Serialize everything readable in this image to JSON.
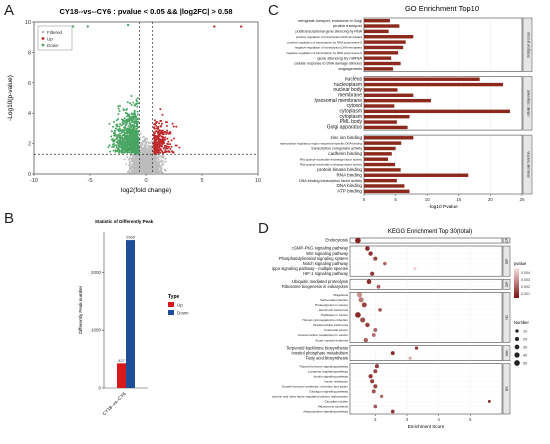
{
  "panels": {
    "A": {
      "letter": "A",
      "chart_data": {
        "type": "scatter",
        "title": "CY18--vs--CY6 : pvalue < 0.05 && |log2FC| > 0.58",
        "xlabel": "log2(fold change)",
        "ylabel": "-Log10(p-value)",
        "xlim": [
          -10,
          10
        ],
        "ylim": [
          0,
          10
        ],
        "x_ticks": [
          "-10",
          "-5",
          "0",
          "5",
          "10"
        ],
        "y_ticks": [
          "0",
          "2",
          "4",
          "6",
          "8",
          "10"
        ],
        "legend_position": "top-left",
        "legend": [
          "Filtered",
          "Up",
          "Down"
        ],
        "colors": {
          "filtered": "#bdbdbd",
          "up": "#c0282a",
          "down": "#4aa563"
        },
        "threshold_lines": {
          "x": [
            -0.58,
            0.58
          ],
          "y": 1.3
        },
        "groups": [
          {
            "name": "Filtered",
            "region": "|x|<0.58 or y<1.3",
            "count_est": 14000
          },
          {
            "name": "Up",
            "region": "x>0.58, y>1.3",
            "count_est": 427
          },
          {
            "name": "Down",
            "region": "x<-0.58, y>1.3",
            "count_est": 2560
          }
        ]
      }
    },
    "B": {
      "letter": "B",
      "chart_data": {
        "type": "bar",
        "title": "Statistic of Differently Peak",
        "ylabel": "Differently Peak number",
        "categories": [
          "CY18--vs--CY6"
        ],
        "series": [
          {
            "name": "Up",
            "values": [
              427
            ],
            "color": "#d7191c"
          },
          {
            "name": "Down",
            "values": [
              2560
            ],
            "color": "#1f4e99"
          }
        ],
        "data_labels": [
          "427",
          "2560"
        ],
        "y_ticks": [
          "0",
          "1000",
          "2000"
        ],
        "ylim": [
          0,
          2700
        ],
        "legend_title": "Type",
        "legend_position": "right"
      }
    },
    "C": {
      "letter": "C",
      "chart_data": {
        "type": "bar",
        "title": "GO Enrichment Top10",
        "xlabel": "-log10 Pvalue",
        "x_ticks": [
          "0",
          "5",
          "10",
          "15",
          "20",
          "25"
        ],
        "xlim": [
          0,
          25
        ],
        "bar_color": "#8b2a1c",
        "groups": [
          {
            "name": "biological process",
            "terms": [
              {
                "label": "retrograde transport, endosome to Golgi",
                "value": 4.1
              },
              {
                "label": "protein transport",
                "value": 5.6
              },
              {
                "label": "posttranscriptional gene silencing by RNA",
                "value": 3.9
              },
              {
                "label": "positive regulation of transcription,DNA-templated",
                "value": 7.8
              },
              {
                "label": "positive regulation of transcription by RNA polymerase II",
                "value": 6.6
              },
              {
                "label": "negative regulation of transcription,DNA-templated",
                "value": 6.2
              },
              {
                "label": "negative regulation of transcription by RNA polymerase II",
                "value": 5.4
              },
              {
                "label": "gene silencing by miRNA",
                "value": 4.3
              },
              {
                "label": "cellular response to DNA damage stimulus",
                "value": 5.8
              },
              {
                "label": "angiogenesis",
                "value": 4.6
              }
            ]
          },
          {
            "name": "cellular component",
            "terms": [
              {
                "label": "nucleus",
                "value": 18.3
              },
              {
                "label": "nucleoplasm",
                "value": 22.0
              },
              {
                "label": "nuclear body",
                "value": 5.3
              },
              {
                "label": "membrane",
                "value": 7.8
              },
              {
                "label": "lysosomal membrane",
                "value": 10.6
              },
              {
                "label": "cytosol",
                "value": 4.8
              },
              {
                "label": "cytoplasm",
                "value": 23.1
              },
              {
                "label": "cytoplasm",
                "value": 7.2
              },
              {
                "label": "PML body",
                "value": 5.2
              },
              {
                "label": "Golgi apparatus",
                "value": 6.9
              }
            ]
          },
          {
            "name": "molecular function",
            "terms": [
              {
                "label": "zinc ion binding",
                "value": 7.8
              },
              {
                "label": "transcription regulatory region sequence-specific DNA binding",
                "value": 5.9
              },
              {
                "label": "transcription coregulator activity",
                "value": 5.0
              },
              {
                "label": "cadherin binding",
                "value": 4.4
              },
              {
                "label": "Rho guanyl-nucleotide exchange factor activity",
                "value": 3.8
              },
              {
                "label": "Rab guanyl-nucleotide exchange factor activity",
                "value": 4.9
              },
              {
                "label": "protein kinase binding",
                "value": 5.8
              },
              {
                "label": "RNA binding",
                "value": 16.5
              },
              {
                "label": "DNA-binding transcription factor activity",
                "value": 5.2
              },
              {
                "label": "DNA binding",
                "value": 6.4
              },
              {
                "label": "ATP binding",
                "value": 7.2
              }
            ]
          }
        ]
      }
    },
    "D": {
      "letter": "D",
      "chart_data": {
        "type": "scatter",
        "title": "KEGG Enrichment Top 30(total)",
        "xlabel": "Enrichment Score",
        "x_ticks": [
          "2",
          "3",
          "4",
          "5"
        ],
        "xlim": [
          1.2,
          6.0
        ],
        "color_legend_title": "pvalue",
        "color_ticks": [
          "0.004",
          "0.003",
          "0.002",
          "0.001"
        ],
        "color_range": [
          "#fbe3e3",
          "#7a1010"
        ],
        "size_legend_title": "Number",
        "size_ticks": [
          "10",
          "20",
          "30",
          "40",
          "50"
        ],
        "groups": [
          {
            "name": "CP",
            "terms": [
              {
                "label": "Endocytosis",
                "x": 1.45,
                "n": 50,
                "p": 0.0004
              }
            ]
          },
          {
            "name": "EIP",
            "terms": [
              {
                "label": "cGMP-PKG signaling pathway",
                "x": 1.75,
                "n": 28,
                "p": 0.0006
              },
              {
                "label": "Wnt signaling pathway",
                "x": 1.85,
                "n": 24,
                "p": 0.0008
              },
              {
                "label": "Phosphatidylinositol signaling system",
                "x": 2.0,
                "n": 20,
                "p": 0.0012
              },
              {
                "label": "Notch signaling pathway",
                "x": 2.3,
                "n": 12,
                "p": 0.002
              },
              {
                "label": "Hippo signaling pathway - multiple species",
                "x": 3.25,
                "n": 8,
                "p": 0.0045
              },
              {
                "label": "HIF-1 signaling pathway",
                "x": 1.9,
                "n": 22,
                "p": 0.0009
              }
            ]
          },
          {
            "name": "GIP",
            "terms": [
              {
                "label": "Ubiquitin mediated proteolysis",
                "x": 1.8,
                "n": 30,
                "p": 0.0007
              },
              {
                "label": "Ribosome biogenesis in eukaryotes",
                "x": 2.1,
                "n": 16,
                "p": 0.0018
              }
            ]
          },
          {
            "name": "HD",
            "terms": [
              {
                "label": "Shigellosis",
                "x": 1.5,
                "n": 40,
                "p": 0.003
              },
              {
                "label": "Salmonella infection",
                "x": 1.55,
                "n": 38,
                "p": 0.0025
              },
              {
                "label": "Proteoglycans in cancer",
                "x": 1.65,
                "n": 34,
                "p": 0.0012
              },
              {
                "label": "Renal cell carcinoma",
                "x": 2.15,
                "n": 14,
                "p": 0.0016
              },
              {
                "label": "Pathways in cancer",
                "x": 1.45,
                "n": 50,
                "p": 0.0006
              },
              {
                "label": "Human cytomegalovirus infection",
                "x": 1.6,
                "n": 36,
                "p": 0.0014
              },
              {
                "label": "Hepatocellular carcinoma",
                "x": 1.75,
                "n": 26,
                "p": 0.0011
              },
              {
                "label": "Colorectal cancer",
                "x": 2.0,
                "n": 18,
                "p": 0.002
              },
              {
                "label": "Central carbon metabolism in cancer",
                "x": 1.95,
                "n": 16,
                "p": 0.0022
              },
              {
                "label": "Acute myeloid leukemia",
                "x": 1.7,
                "n": 24,
                "p": 0.0019
              }
            ]
          },
          {
            "name": "Met",
            "terms": [
              {
                "label": "Terpenoid backbone biosynthesis",
                "x": 3.3,
                "n": 10,
                "p": 0.0008
              },
              {
                "label": "Inositol phosphate metabolism",
                "x": 2.55,
                "n": 18,
                "p": 0.0007
              },
              {
                "label": "Fatty acid biosynthesis",
                "x": 3.1,
                "n": 8,
                "p": 0.0035
              }
            ]
          },
          {
            "name": "OS",
            "terms": [
              {
                "label": "Thyroid hormone signaling pathway",
                "x": 2.05,
                "n": 20,
                "p": 0.001
              },
              {
                "label": "Longevity regulating pathway",
                "x": 2.0,
                "n": 18,
                "p": 0.0013
              },
              {
                "label": "Insulin signaling pathway",
                "x": 1.85,
                "n": 22,
                "p": 0.0009
              },
              {
                "label": "Insulin resistance",
                "x": 1.9,
                "n": 20,
                "p": 0.0011
              },
              {
                "label": "Growth hormone synthesis, secretion and action",
                "x": 2.0,
                "n": 20,
                "p": 0.0012
              },
              {
                "label": "Glucagon signaling pathway",
                "x": 1.95,
                "n": 18,
                "p": 0.0015
              },
              {
                "label": "Endocrine and other factor-regulated calcium reabsorption",
                "x": 2.2,
                "n": 10,
                "p": 0.002
              },
              {
                "label": "Circadian rhythm",
                "x": 5.6,
                "n": 6,
                "p": 0.0005
              },
              {
                "label": "Aldosterone synthesis",
                "x": 2.0,
                "n": 14,
                "p": 0.0017
              },
              {
                "label": "Adipocytokine signaling pathway",
                "x": 2.55,
                "n": 16,
                "p": 0.0009
              }
            ]
          }
        ]
      }
    }
  }
}
